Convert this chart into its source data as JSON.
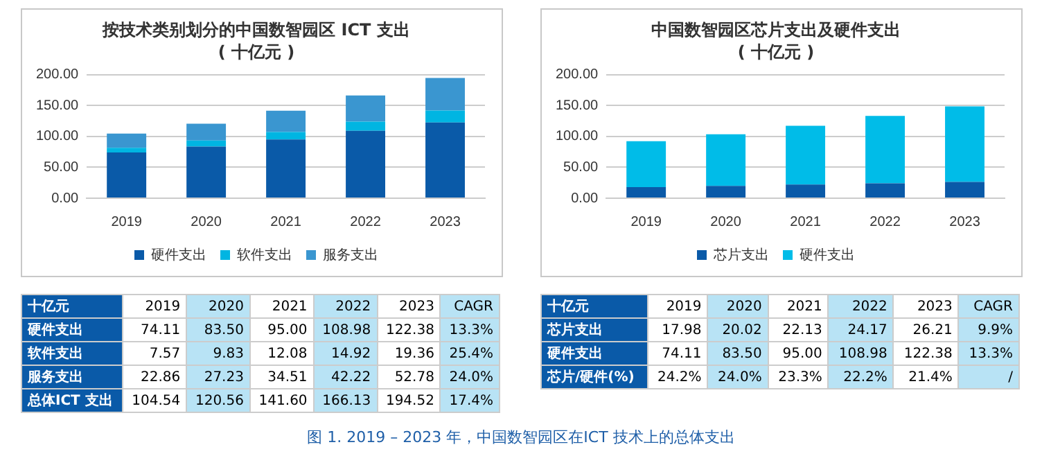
{
  "chart_data": [
    {
      "type": "bar",
      "title": "按技术类别划分的中国数智园区 ICT 支出",
      "subtitle": "( 十亿元 )",
      "categories": [
        "2019",
        "2020",
        "2021",
        "2022",
        "2023"
      ],
      "stacked": true,
      "ylim": [
        0,
        200
      ],
      "yticks": [
        {
          "value": 0,
          "label": "0.00"
        },
        {
          "value": 50,
          "label": "50.00"
        },
        {
          "value": 100,
          "label": "100.00"
        },
        {
          "value": 150,
          "label": "150.00"
        },
        {
          "value": 200,
          "label": "200.00"
        }
      ],
      "grid": "y",
      "legend": "bottom",
      "series": [
        {
          "name": "硬件支出",
          "color": "#0a5aa8",
          "values": [
            74.11,
            83.5,
            95.0,
            108.98,
            122.38
          ],
          "value_labels": [
            "74.11",
            "83.50",
            "95.00",
            "108.98",
            "122.38"
          ]
        },
        {
          "name": "软件支出",
          "color": "#00b5e2",
          "values": [
            7.57,
            9.83,
            12.08,
            14.92,
            19.36
          ],
          "value_labels": [
            "7.57",
            "9.83",
            "12.08",
            "14.92",
            "19.36"
          ]
        },
        {
          "name": "服务支出",
          "color": "#3a96d0",
          "values": [
            22.86,
            27.23,
            34.51,
            42.22,
            52.78
          ],
          "value_labels": [
            "22.86",
            "27.23",
            "34.51",
            "42.22",
            "52.78"
          ]
        }
      ],
      "annotations": [
        "十亿元",
        "CAGR",
        "13.3%",
        "25.4%",
        "24.0%",
        "总体ICT 支出",
        "104.54",
        "120.56",
        "141.60",
        "166.13",
        "194.52",
        "17.4%"
      ]
    },
    {
      "type": "bar",
      "title": "中国数智园区芯片支出及硬件支出",
      "subtitle": "( 十亿元 )",
      "categories": [
        "2019",
        "2020",
        "2021",
        "2022",
        "2023"
      ],
      "stacked": true,
      "ylim": [
        0,
        200
      ],
      "yticks": [
        {
          "value": 0,
          "label": "0.00"
        },
        {
          "value": 50,
          "label": "50.00"
        },
        {
          "value": 100,
          "label": "100.00"
        },
        {
          "value": 150,
          "label": "150.00"
        },
        {
          "value": 200,
          "label": "200.00"
        }
      ],
      "grid": "y",
      "legend": "bottom",
      "series": [
        {
          "name": "芯片支出",
          "color": "#0a5aa8",
          "values": [
            17.98,
            20.02,
            22.13,
            24.17,
            26.21
          ],
          "value_labels": [
            "17.98",
            "20.02",
            "22.13",
            "24.17",
            "26.21"
          ]
        },
        {
          "name": "硬件支出",
          "color": "#00bce8",
          "values": [
            74.11,
            83.5,
            95.0,
            108.98,
            122.38
          ],
          "value_labels": [
            "74.11",
            "83.50",
            "95.00",
            "108.98",
            "122.38"
          ]
        }
      ],
      "annotations": [
        "十亿元",
        "CAGR",
        "9.9%",
        "13.3%",
        "芯片/硬件(%)",
        "24.2%",
        "24.0%",
        "23.3%",
        "22.2%",
        "21.4%",
        "/",
        "图 1. 2019 – 2023 年，中国数智园区在ICT 技术上的总体支出"
      ]
    }
  ]
}
